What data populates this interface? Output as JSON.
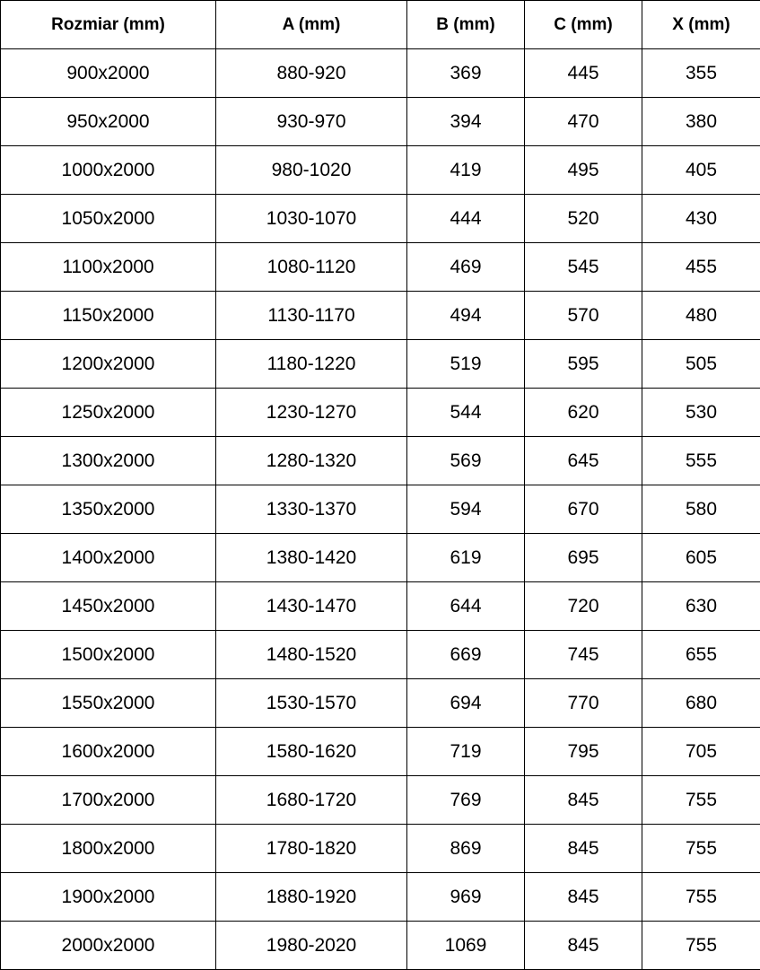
{
  "table": {
    "headers": [
      "Rozmiar (mm)",
      "A (mm)",
      "B (mm)",
      "C (mm)",
      "X (mm)"
    ],
    "rows": [
      [
        "900x2000",
        "880-920",
        "369",
        "445",
        "355"
      ],
      [
        "950x2000",
        "930-970",
        "394",
        "470",
        "380"
      ],
      [
        "1000x2000",
        "980-1020",
        "419",
        "495",
        "405"
      ],
      [
        "1050x2000",
        "1030-1070",
        "444",
        "520",
        "430"
      ],
      [
        "1100x2000",
        "1080-1120",
        "469",
        "545",
        "455"
      ],
      [
        "1150x2000",
        "1130-1170",
        "494",
        "570",
        "480"
      ],
      [
        "1200x2000",
        "1180-1220",
        "519",
        "595",
        "505"
      ],
      [
        "1250x2000",
        "1230-1270",
        "544",
        "620",
        "530"
      ],
      [
        "1300x2000",
        "1280-1320",
        "569",
        "645",
        "555"
      ],
      [
        "1350x2000",
        "1330-1370",
        "594",
        "670",
        "580"
      ],
      [
        "1400x2000",
        "1380-1420",
        "619",
        "695",
        "605"
      ],
      [
        "1450x2000",
        "1430-1470",
        "644",
        "720",
        "630"
      ],
      [
        "1500x2000",
        "1480-1520",
        "669",
        "745",
        "655"
      ],
      [
        "1550x2000",
        "1530-1570",
        "694",
        "770",
        "680"
      ],
      [
        "1600x2000",
        "1580-1620",
        "719",
        "795",
        "705"
      ],
      [
        "1700x2000",
        "1680-1720",
        "769",
        "845",
        "755"
      ],
      [
        "1800x2000",
        "1780-1820",
        "869",
        "845",
        "755"
      ],
      [
        "1900x2000",
        "1880-1920",
        "969",
        "845",
        "755"
      ],
      [
        "2000x2000",
        "1980-2020",
        "1069",
        "845",
        "755"
      ]
    ]
  }
}
